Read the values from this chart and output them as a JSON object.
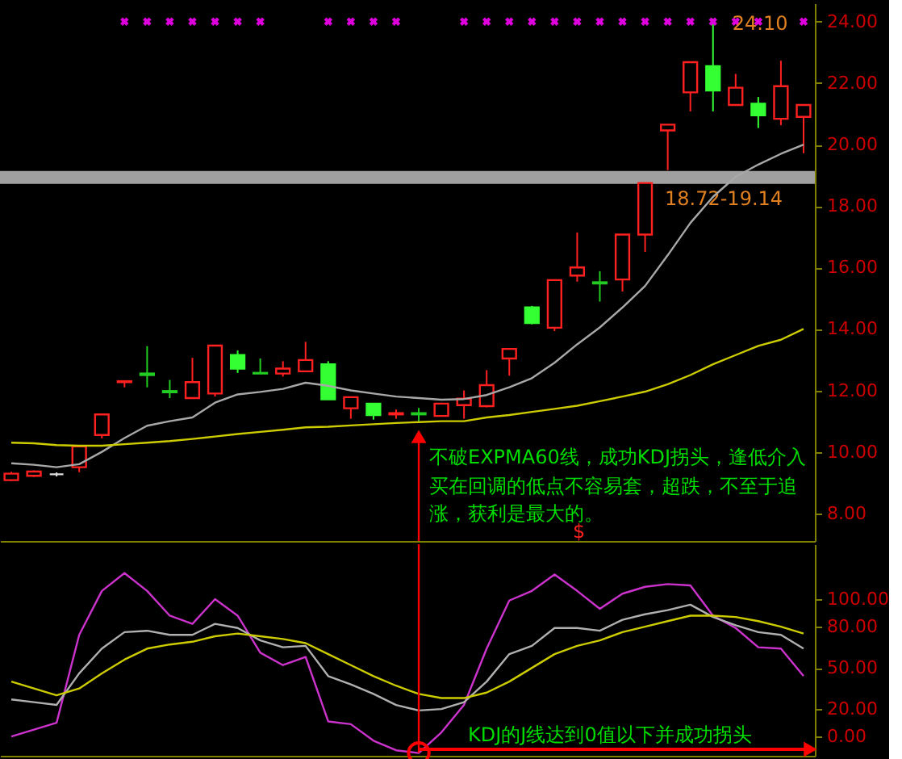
{
  "chart_data": [
    {
      "type": "candlestick",
      "categories": [
        null,
        null,
        null,
        null,
        null,
        null,
        null,
        null,
        null,
        null,
        null,
        null,
        null,
        null,
        null,
        null,
        null,
        null,
        null,
        null,
        null,
        null,
        null,
        null,
        null,
        null,
        null,
        null,
        null,
        null,
        null,
        null,
        null,
        null,
        null,
        null
      ],
      "ohlc": [
        [
          9.08,
          9.35,
          9.05,
          9.29
        ],
        [
          9.22,
          9.4,
          9.18,
          9.36
        ],
        [
          9.27,
          9.33,
          9.2,
          9.27
        ],
        [
          9.5,
          10.18,
          9.34,
          10.18
        ],
        [
          10.55,
          11.22,
          10.44,
          11.22
        ],
        [
          12.27,
          12.3,
          12.1,
          12.3
        ],
        [
          12.55,
          13.44,
          12.1,
          12.5
        ],
        [
          11.98,
          12.34,
          11.75,
          11.94
        ],
        [
          11.75,
          13.06,
          11.75,
          12.27
        ],
        [
          11.9,
          13.46,
          11.8,
          13.46
        ],
        [
          13.15,
          13.3,
          12.57,
          12.71
        ],
        [
          12.57,
          13.04,
          12.55,
          12.55
        ],
        [
          12.55,
          12.95,
          12.45,
          12.71
        ],
        [
          12.62,
          13.58,
          12.62,
          12.99
        ],
        [
          12.85,
          12.95,
          11.71,
          11.71
        ],
        [
          11.42,
          11.78,
          11.08,
          11.78
        ],
        [
          11.57,
          11.57,
          11.05,
          11.2
        ],
        [
          11.22,
          11.38,
          11.08,
          11.26
        ],
        [
          11.26,
          11.43,
          11.0,
          11.22
        ],
        [
          11.17,
          11.6,
          11.17,
          11.57
        ],
        [
          11.52,
          12.0,
          11.08,
          11.73
        ],
        [
          11.49,
          12.66,
          11.45,
          12.17
        ],
        [
          13.04,
          13.35,
          12.48,
          13.35
        ],
        [
          14.7,
          14.75,
          14.15,
          14.19
        ],
        [
          14.04,
          15.59,
          13.93,
          15.59
        ],
        [
          15.74,
          17.14,
          15.54,
          16.0
        ],
        [
          15.52,
          15.88,
          14.89,
          15.48
        ],
        [
          15.61,
          17.07,
          15.22,
          17.07
        ],
        [
          17.07,
          18.75,
          16.51,
          18.75
        ],
        [
          20.46,
          20.65,
          19.17,
          20.65
        ],
        [
          21.7,
          22.68,
          21.08,
          22.68
        ],
        [
          22.55,
          24.1,
          21.08,
          21.76
        ],
        [
          21.29,
          22.3,
          21.29,
          21.85
        ],
        [
          21.33,
          21.55,
          20.54,
          20.95
        ],
        [
          20.84,
          22.73,
          20.63,
          21.9
        ],
        [
          20.9,
          21.29,
          19.72,
          21.29
        ]
      ],
      "colors": [
        "#ff2020",
        "#ff2020",
        "#e0e0e0",
        "#ff2020",
        "#ff2020",
        "#ff2020",
        "#22cc22",
        "#22cc22",
        "#ff2020",
        "#ff2020",
        "#33ff33",
        "#22cc22",
        "#ff2020",
        "#ff2020",
        "#33ff33",
        "#ff2020",
        "#33ff33",
        "#ff2020",
        "#22cc22",
        "#ff2020",
        "#ff2020",
        "#ff2020",
        "#ff2020",
        "#33ff33",
        "#ff2020",
        "#ff2020",
        "#22cc22",
        "#ff2020",
        "#ff2020",
        "#ff2020",
        "#ff2020",
        "#33ff33",
        "#ff2020",
        "#33ff33",
        "#ff2020",
        "#ff2020"
      ],
      "series": [
        {
          "type": "line",
          "color": "#a8a8a8",
          "values": [
            9.63,
            9.58,
            9.5,
            9.6,
            10.0,
            10.45,
            10.85,
            11.0,
            11.12,
            11.6,
            11.87,
            11.95,
            12.05,
            12.25,
            12.15,
            12.0,
            11.9,
            11.8,
            11.75,
            11.7,
            11.72,
            11.85,
            12.1,
            12.4,
            12.9,
            13.5,
            14.05,
            14.7,
            15.4,
            16.4,
            17.45,
            18.3,
            18.95,
            19.35,
            19.7,
            20.0
          ]
        },
        {
          "type": "line",
          "color": "#cccc00",
          "values": [
            10.3,
            10.28,
            10.22,
            10.2,
            10.2,
            10.25,
            10.3,
            10.35,
            10.42,
            10.5,
            10.58,
            10.65,
            10.72,
            10.8,
            10.82,
            10.86,
            10.9,
            10.94,
            10.97,
            11.0,
            11.0,
            11.12,
            11.2,
            11.3,
            11.4,
            11.5,
            11.65,
            11.8,
            11.96,
            12.2,
            12.5,
            12.85,
            13.15,
            13.45,
            13.65,
            14.0
          ]
        },
        {
          "type": "scatter",
          "color": "#dd00dd",
          "marker": "cross",
          "values": [
            null,
            null,
            null,
            null,
            null,
            24.0,
            24.0,
            24.0,
            24.0,
            24.0,
            24.0,
            24.0,
            null,
            null,
            24.0,
            24.0,
            24.0,
            24.0,
            null,
            null,
            24.0,
            24.0,
            24.0,
            24.0,
            24.0,
            24.0,
            24.0,
            24.0,
            24.0,
            24.0,
            24.0,
            24.0,
            24.0,
            24.0,
            null,
            24.0
          ]
        }
      ],
      "ylim": [
        7.1,
        24.6
      ],
      "yticks": [
        {
          "value": 8,
          "label": "8.00"
        },
        {
          "value": 10,
          "label": "10.00"
        },
        {
          "value": 12,
          "label": "12.00"
        },
        {
          "value": 14,
          "label": "14.00"
        },
        {
          "value": 16,
          "label": "16.00"
        },
        {
          "value": 18,
          "label": "18.00"
        },
        {
          "value": 20,
          "label": "20.00"
        },
        {
          "value": 22,
          "label": "22.00"
        },
        {
          "value": 24,
          "label": "24.00"
        }
      ],
      "bands": [
        {
          "axis": "y",
          "from": 18.72,
          "to": 19.14,
          "label": "18.72-19.14",
          "color": "#a0a0a0"
        }
      ],
      "annotations": [
        {
          "text": "24.10",
          "y": 24.1
        },
        "不破EXPMA60线，成功KDJ拐头，逢低介入",
        "买在回调的低点不容易套，超跌，不至于追",
        "涨，获利是最大的。",
        "$"
      ],
      "tick_labels": "y",
      "grid": false
    },
    {
      "type": "line",
      "categories": [
        null,
        null,
        null,
        null,
        null,
        null,
        null,
        null,
        null,
        null,
        null,
        null,
        null,
        null,
        null,
        null,
        null,
        null,
        null,
        null,
        null,
        null,
        null,
        null,
        null,
        null,
        null,
        null,
        null,
        null,
        null,
        null,
        null,
        null,
        null,
        null
      ],
      "series": [
        {
          "color": "#cc33cc",
          "values": [
            0,
            5,
            10,
            74,
            106,
            119,
            106,
            88,
            82,
            100,
            88,
            61,
            52,
            58,
            11,
            9,
            -3,
            -10,
            -12,
            3,
            23,
            64,
            99,
            106,
            118,
            106,
            93,
            104,
            109,
            111,
            110,
            88,
            79,
            65,
            64,
            44
          ]
        },
        {
          "color": "#b0b0b0",
          "values": [
            27,
            25,
            23,
            46,
            64,
            76,
            77,
            74,
            74,
            82,
            79,
            70,
            65,
            66,
            44,
            38,
            31,
            23,
            19,
            20,
            25,
            40,
            60,
            66,
            79,
            79,
            77,
            85,
            89,
            92,
            96,
            87,
            81,
            76,
            74,
            64
          ]
        },
        {
          "color": "#cccc00",
          "values": [
            40,
            35,
            30,
            35,
            46,
            56,
            64,
            67,
            69,
            73,
            75,
            73,
            71,
            68,
            60,
            52,
            44,
            37,
            31,
            28,
            28,
            32,
            40,
            50,
            60,
            66,
            70,
            76,
            80,
            84,
            88,
            88,
            87,
            84,
            80,
            75
          ]
        }
      ],
      "ylim": [
        -14,
        140
      ],
      "yticks": [
        {
          "value": 0,
          "label": "0.00"
        },
        {
          "value": 20,
          "label": "20.00"
        },
        {
          "value": 50,
          "label": "50.00"
        },
        {
          "value": 80,
          "label": "80.00"
        },
        {
          "value": 100,
          "label": "100.00"
        }
      ],
      "annotations": [
        "KDJ的J线达到0值以下并成功拐头"
      ],
      "tick_labels": "y",
      "grid": false
    }
  ]
}
